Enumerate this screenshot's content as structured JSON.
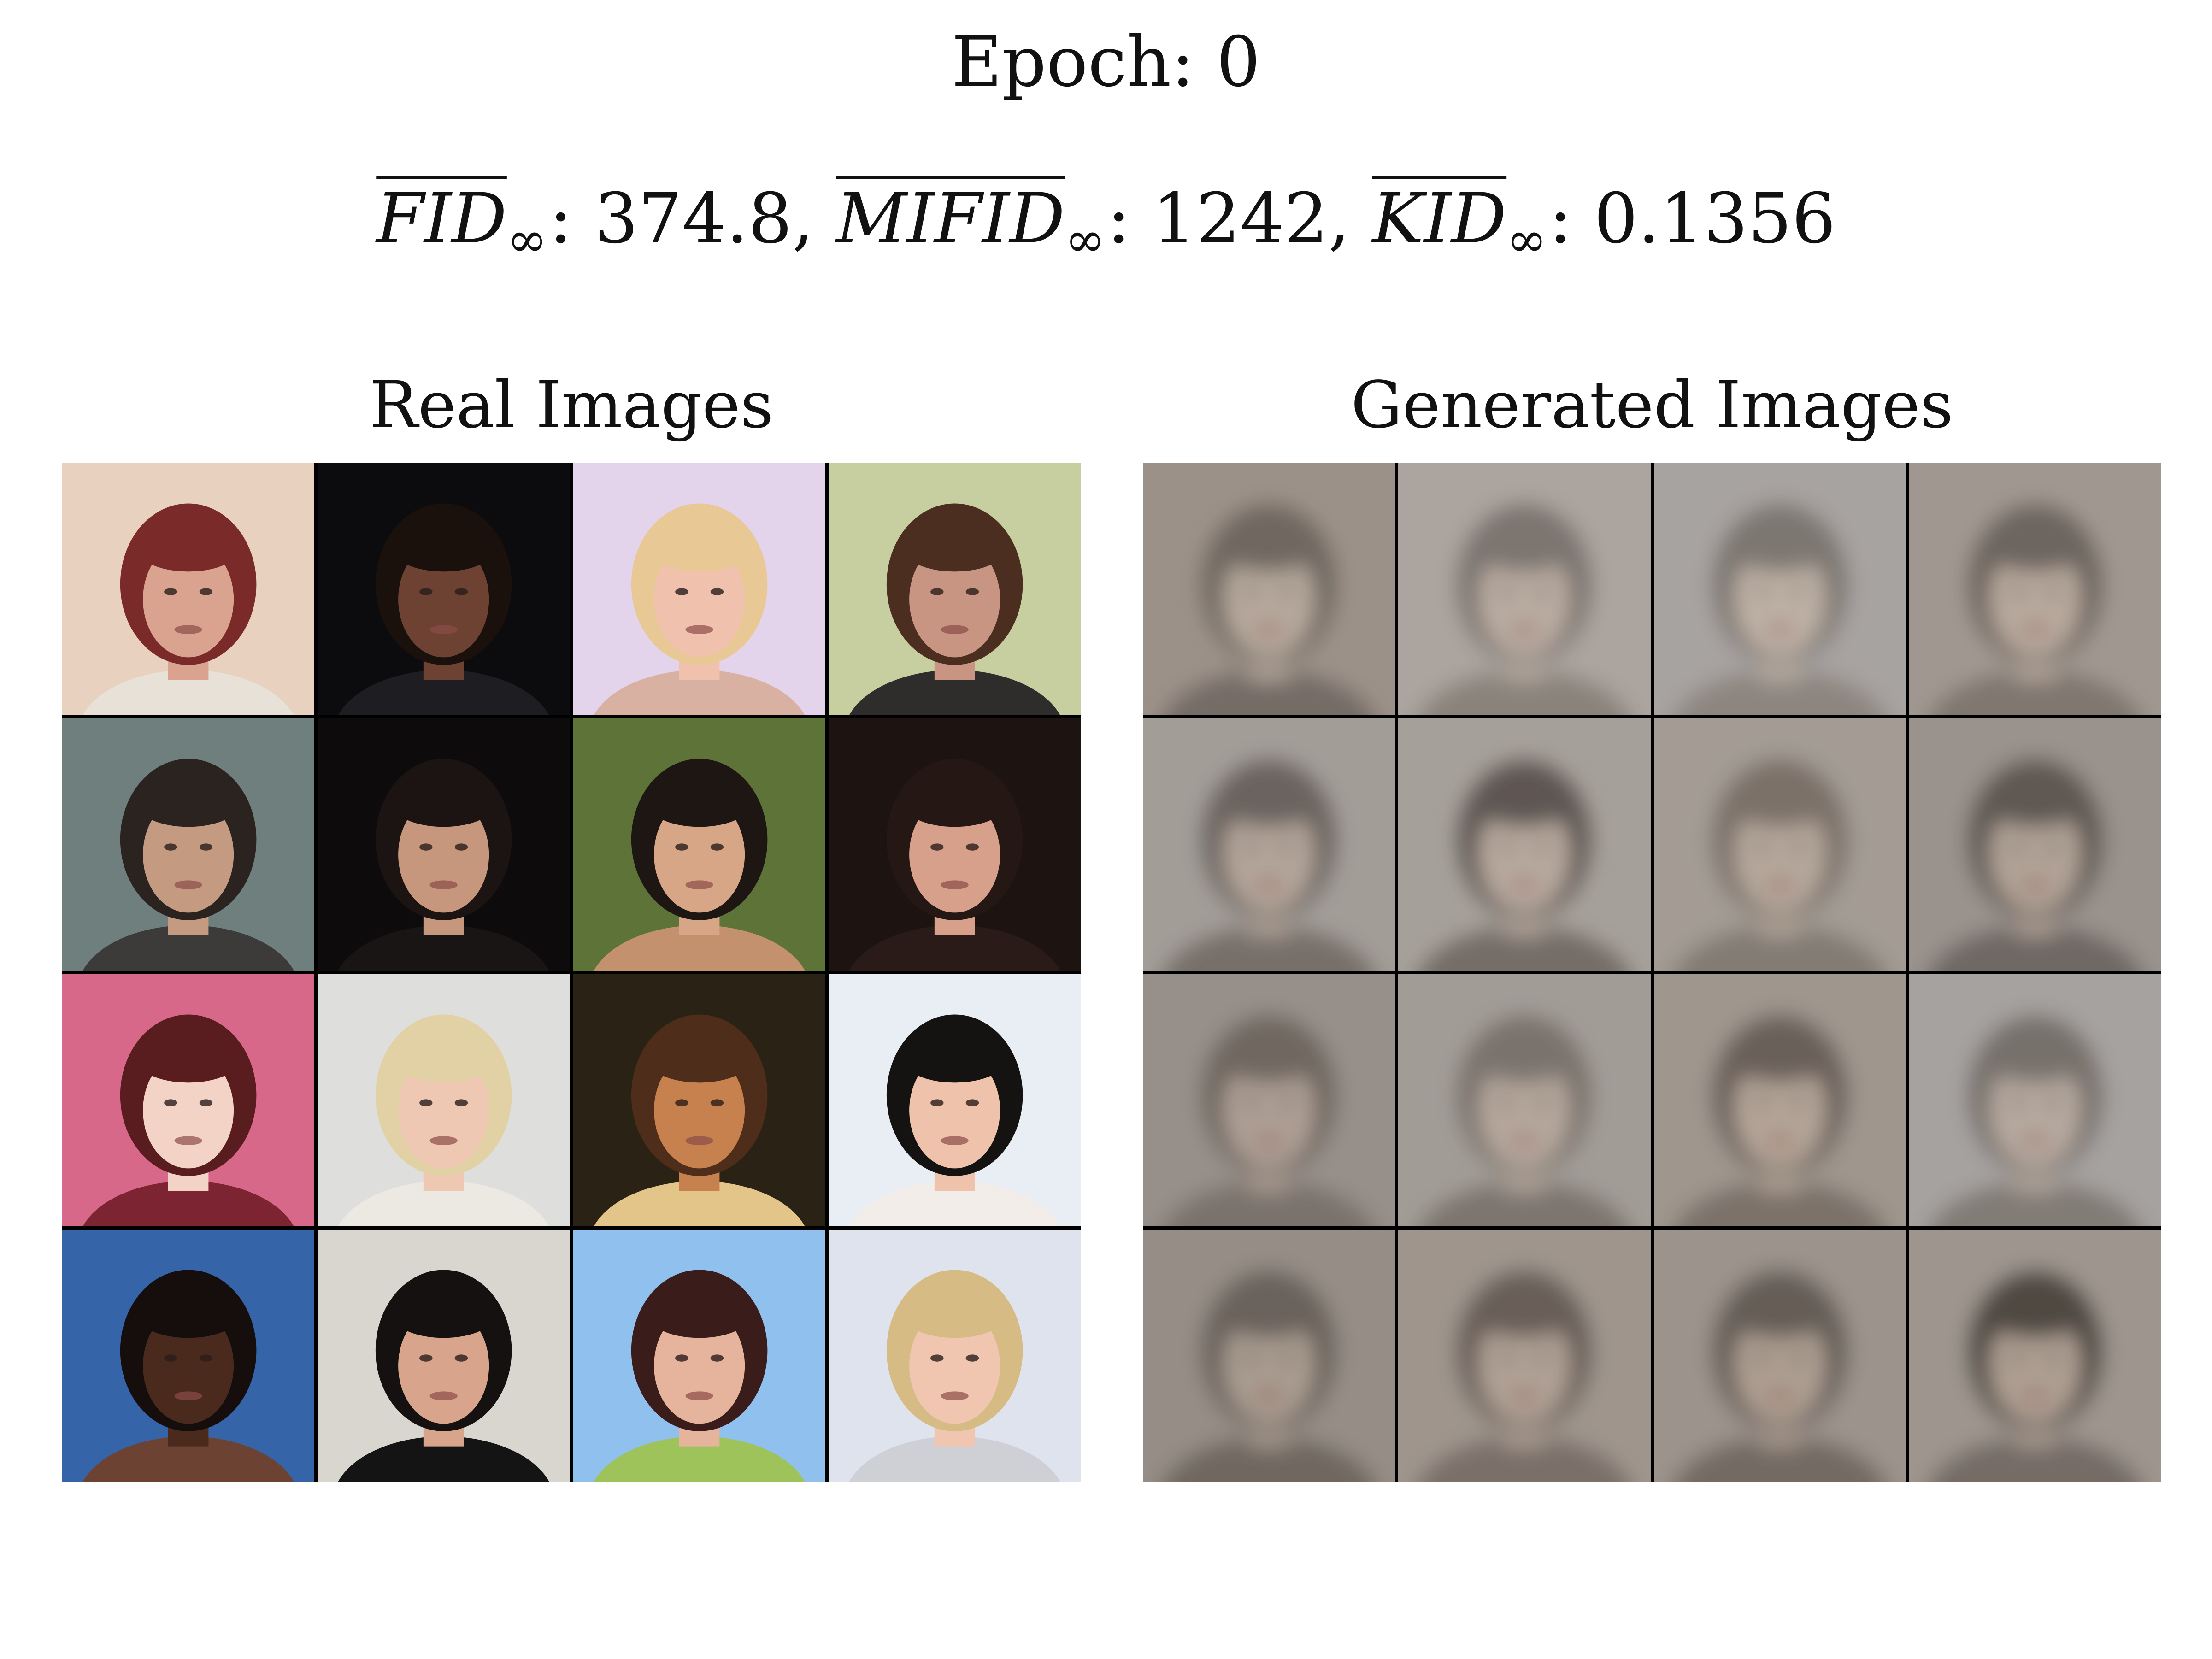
{
  "figure": {
    "title": "Epoch: 0",
    "metrics": [
      {
        "name": "FID",
        "subscript": "∞",
        "value": "374.8",
        "separator": ", "
      },
      {
        "name": "MIFID",
        "subscript": "∞",
        "value": "1242",
        "separator": ", "
      },
      {
        "name": "KID",
        "subscript": "∞",
        "value": "0.1356",
        "separator": ""
      }
    ]
  },
  "panels": {
    "real": {
      "title": "Real Images",
      "tiles": [
        {
          "bg": "#e8d2bf",
          "hair": "#7a2a28",
          "skin": "#d9a38f",
          "shirt": "#e7e1d8"
        },
        {
          "bg": "#0c0c0e",
          "hair": "#1a100c",
          "skin": "#6d4233",
          "shirt": "#1e1e22"
        },
        {
          "bg": "#e3d4ec",
          "hair": "#e8c895",
          "skin": "#f0c2ad",
          "shirt": "#d8b1a2"
        },
        {
          "bg": "#c7cfa0",
          "hair": "#4b2e1f",
          "skin": "#c99583",
          "shirt": "#2f2c2c"
        },
        {
          "bg": "#6e7f7d",
          "hair": "#2b2320",
          "skin": "#c49a81",
          "shirt": "#3d3a3a"
        },
        {
          "bg": "#0d0b0b",
          "hair": "#1b1413",
          "skin": "#c7977d",
          "shirt": "#1a1515"
        },
        {
          "bg": "#5d7338",
          "hair": "#1e1612",
          "skin": "#d7a687",
          "shirt": "#c4916f"
        },
        {
          "bg": "#1d1310",
          "hair": "#241714",
          "skin": "#d6a08a",
          "shirt": "#2a1b18"
        },
        {
          "bg": "#d86889",
          "hair": "#5a1d1f",
          "skin": "#f3d3c6",
          "shirt": "#7c2432"
        },
        {
          "bg": "#dededd",
          "hair": "#e3d1a6",
          "skin": "#efc8b4",
          "shirt": "#ece8e2"
        },
        {
          "bg": "#2a2214",
          "hair": "#4e2d1a",
          "skin": "#c7814e",
          "shirt": "#e3c489"
        },
        {
          "bg": "#e9eef5",
          "hair": "#151212",
          "skin": "#efc3ab",
          "shirt": "#f2ede8"
        },
        {
          "bg": "#3565a8",
          "hair": "#150e0c",
          "skin": "#4a2a1d",
          "shirt": "#6c4333"
        },
        {
          "bg": "#d9d5cf",
          "hair": "#151110",
          "skin": "#d8a58c",
          "shirt": "#141414"
        },
        {
          "bg": "#8fc0ee",
          "hair": "#3a1c1a",
          "skin": "#e6b39c",
          "shirt": "#9dc35a"
        },
        {
          "bg": "#dfe3ee",
          "hair": "#d6bb85",
          "skin": "#f0c6b0",
          "shirt": "#cfcfd6"
        }
      ]
    },
    "generated": {
      "title": "Generated Images",
      "tiles": [
        {
          "bg": "#9c9188",
          "hair": "#6f6760",
          "skin": "#b6a89c",
          "shirt": "#756c66"
        },
        {
          "bg": "#aba49f",
          "hair": "#7c756f",
          "skin": "#b9aca1",
          "shirt": "#8a837c"
        },
        {
          "bg": "#a7a3a1",
          "hair": "#7d7771",
          "skin": "#bdb0a5",
          "shirt": "#8d8680"
        },
        {
          "bg": "#a09890",
          "hair": "#6d655f",
          "skin": "#b8a99d",
          "shirt": "#7f7770"
        },
        {
          "bg": "#a39d98",
          "hair": "#6b645f",
          "skin": "#b3a59a",
          "shirt": "#77706b"
        },
        {
          "bg": "#a6a09a",
          "hair": "#5e5752",
          "skin": "#b7a99e",
          "shirt": "#746d68"
        },
        {
          "bg": "#a39b94",
          "hair": "#7b7169",
          "skin": "#b5a79b",
          "shirt": "#837b74"
        },
        {
          "bg": "#9a928c",
          "hair": "#5f5853",
          "skin": "#b1a397",
          "shirt": "#6f6863"
        },
        {
          "bg": "#978f89",
          "hair": "#6f6761",
          "skin": "#ad9f94",
          "shirt": "#7a726c"
        },
        {
          "bg": "#a29c97",
          "hair": "#7a736d",
          "skin": "#b5a79c",
          "shirt": "#7d7670"
        },
        {
          "bg": "#9f968e",
          "hair": "#6a615a",
          "skin": "#b4a498",
          "shirt": "#7b726b"
        },
        {
          "bg": "#a6a2a0",
          "hair": "#77716c",
          "skin": "#b6a99f",
          "shirt": "#827b76"
        },
        {
          "bg": "#958d86",
          "hair": "#6a625b",
          "skin": "#a99b90",
          "shirt": "#6f6761"
        },
        {
          "bg": "#9f958d",
          "hair": "#695f58",
          "skin": "#b0a195",
          "shirt": "#7a7069"
        },
        {
          "bg": "#9c938c",
          "hair": "#655d57",
          "skin": "#ad9e92",
          "shirt": "#736a64"
        },
        {
          "bg": "#9e958e",
          "hair": "#4f4843",
          "skin": "#ae9f93",
          "shirt": "#756c66"
        }
      ]
    }
  }
}
